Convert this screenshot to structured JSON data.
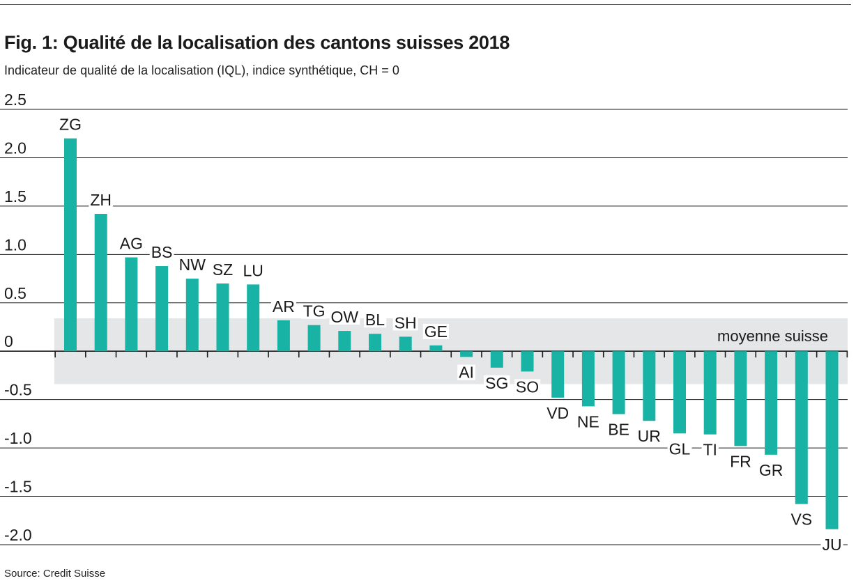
{
  "title": "Fig. 1: Qualité de la localisation des cantons suisses 2018",
  "subtitle": "Indicateur de qualité de la localisation (IQL), indice synthétique, CH = 0",
  "source": "Source: Credit Suisse",
  "colors": {
    "bar": "#19b3a6",
    "band": "#e4e6e7",
    "grid": "#1a1a1a"
  },
  "chart_data": {
    "type": "bar",
    "categories": [
      "ZG",
      "ZH",
      "AG",
      "BS",
      "NW",
      "SZ",
      "LU",
      "AR",
      "TG",
      "OW",
      "BL",
      "SH",
      "GE",
      "AI",
      "SG",
      "SO",
      "VD",
      "NE",
      "BE",
      "UR",
      "GL",
      "TI",
      "FR",
      "GR",
      "VS",
      "JU"
    ],
    "values": [
      2.2,
      1.42,
      0.97,
      0.88,
      0.75,
      0.7,
      0.69,
      0.32,
      0.27,
      0.21,
      0.18,
      0.15,
      0.06,
      -0.06,
      -0.17,
      -0.21,
      -0.48,
      -0.57,
      -0.65,
      -0.72,
      -0.85,
      -0.86,
      -0.98,
      -1.07,
      -1.58,
      -1.84
    ],
    "ylim": [
      -2.0,
      2.5
    ],
    "yticks": [
      2.5,
      2.0,
      1.5,
      1.0,
      0.5,
      0,
      -0.5,
      -1.0,
      -1.5,
      -2.0
    ],
    "ytick_labels": [
      "2.5",
      "2.0",
      "1.5",
      "1.0",
      "0.5",
      "0",
      "-0.5",
      "-1.0",
      "-1.5",
      "-2.0"
    ],
    "band": {
      "label": "moyenne suisse",
      "from": -0.34,
      "to": 0.34
    },
    "grid": true,
    "xlabel": "",
    "ylabel": ""
  }
}
